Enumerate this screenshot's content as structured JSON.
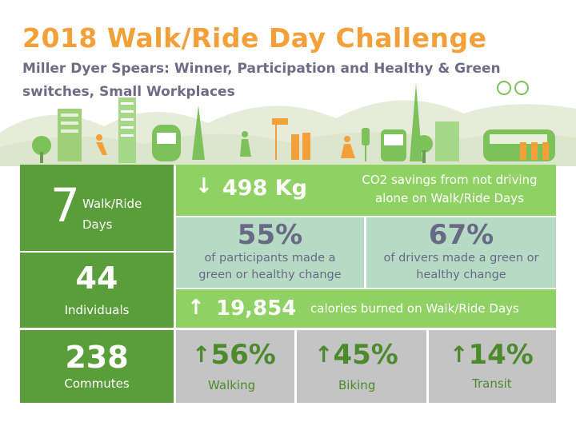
{
  "header": {
    "title": "2018 Walk/Ride Day Challenge",
    "subtitle": "Miller Dyer Spears: Winner, Participation and Healthy & Green switches, Small Workplaces"
  },
  "colors": {
    "title_orange": "#f3a03a",
    "dark_green": "#5a9e3b",
    "light_green": "#8fd163",
    "teal": "#b6dac4",
    "gray": "#c4c4c4",
    "slate_text": "#686a85"
  },
  "left_stats": {
    "days_number": "7",
    "days_label": "Walk/Ride Days",
    "individuals_number": "44",
    "individuals_label": "Individuals",
    "commutes_number": "238",
    "commutes_label": "Commutes"
  },
  "co2": {
    "arrow": "↓",
    "value": "498 Kg",
    "text": "CO2 savings from not driving alone on Walk/Ride Days"
  },
  "participants": {
    "percent": "55%",
    "text": "of participants made a green or healthy change"
  },
  "drivers": {
    "percent": "67%",
    "text": "of drivers made a green or healthy change"
  },
  "calories": {
    "arrow": "↑",
    "value": "19,854",
    "text": "calories burned on Walk/Ride Days"
  },
  "modes": [
    {
      "arrow": "↑",
      "percent": "56%",
      "label": "Walking"
    },
    {
      "arrow": "↑",
      "percent": "45%",
      "label": "Biking"
    },
    {
      "arrow": "↑",
      "percent": "14%",
      "label": "Transit"
    }
  ]
}
